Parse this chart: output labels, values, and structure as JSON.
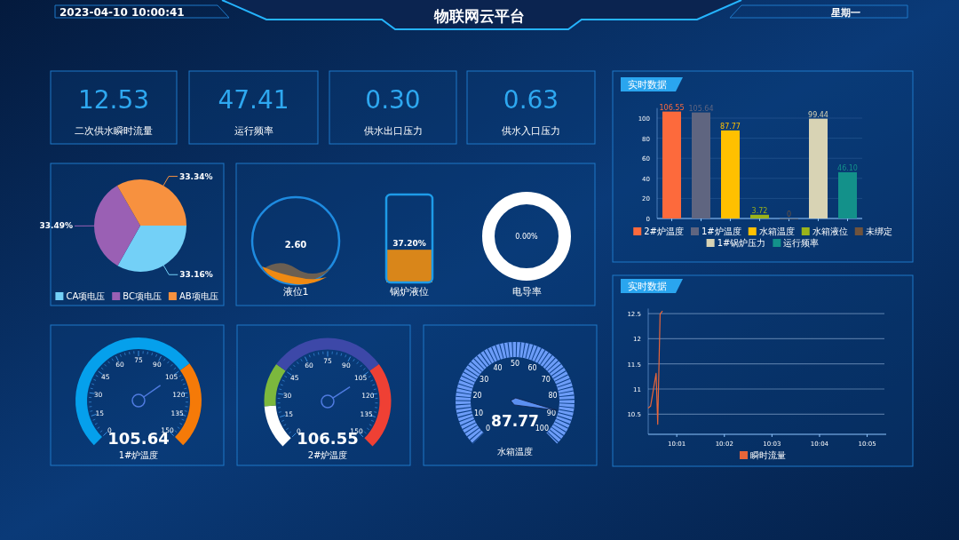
{
  "chart_data": [
    {
      "type": "other",
      "title": "物联网云平台",
      "annotations": [
        "2023-04-10 10:00:41",
        "星期一"
      ]
    },
    {
      "type": "other",
      "categories": [
        "二次供水瞬时流量",
        "运行频率",
        "供水出口压力",
        "供水入口压力"
      ],
      "annotations": [
        "12.53",
        "47.41",
        "0.30",
        "0.63"
      ]
    },
    {
      "type": "pie",
      "categories": [
        "CA项电压",
        "BC项电压",
        "AB项电压"
      ],
      "values": [
        33.16,
        33.49,
        33.34
      ],
      "colors": [
        "#73d0f7",
        "#9a60b4",
        "#f7913f"
      ],
      "value_labels": [
        "33.16%",
        "33.49%",
        "33.34%"
      ],
      "legend": "bottom"
    },
    {
      "type": "other",
      "title": "液位1",
      "annotations": [
        "2.60"
      ]
    },
    {
      "type": "other",
      "title": "锅炉液位",
      "values": [
        37.2
      ],
      "value_labels": [
        "37.20%"
      ]
    },
    {
      "type": "other",
      "title": "电导率",
      "values": [
        0
      ],
      "value_labels": [
        "0.00%"
      ]
    },
    {
      "type": "bar",
      "title": "实时数据",
      "categories": [
        null,
        null,
        null,
        null,
        null,
        null,
        null
      ],
      "ylim": [
        0,
        110
      ],
      "yticks": [
        0,
        20,
        40,
        60,
        80,
        100
      ],
      "grid": "y",
      "legend": "bottom",
      "series": [
        {
          "name": "2#炉温度",
          "color": "#fd6a3c",
          "values": [
            106.55,
            null,
            null,
            null,
            null,
            null,
            null
          ],
          "value_labels": [
            "106.55",
            null,
            null,
            null,
            null,
            null,
            null
          ]
        },
        {
          "name": "1#炉温度",
          "color": "#5f6580",
          "values": [
            null,
            105.64,
            null,
            null,
            null,
            null,
            null
          ],
          "value_labels": [
            null,
            "105.64",
            null,
            null,
            null,
            null,
            null
          ]
        },
        {
          "name": "水箱温度",
          "color": "#ffc000",
          "values": [
            null,
            null,
            87.77,
            null,
            null,
            null,
            null
          ],
          "value_labels": [
            null,
            null,
            "87.77",
            null,
            null,
            null,
            null
          ]
        },
        {
          "name": "水箱液位",
          "color": "#9bb31a",
          "values": [
            null,
            null,
            null,
            3.72,
            null,
            null,
            null
          ],
          "value_labels": [
            null,
            null,
            null,
            "3.72",
            null,
            null,
            null
          ]
        },
        {
          "name": "未绑定",
          "color": "#70533c",
          "values": [
            null,
            null,
            null,
            null,
            0,
            null,
            null
          ],
          "value_labels": [
            null,
            null,
            null,
            null,
            "0",
            null,
            null
          ]
        },
        {
          "name": "1#锅炉压力",
          "color": "#d8d3b4",
          "values": [
            null,
            null,
            null,
            null,
            null,
            99.44,
            null
          ],
          "value_labels": [
            null,
            null,
            null,
            null,
            null,
            "99.44",
            null
          ]
        },
        {
          "name": "运行频率",
          "color": "#13918a",
          "values": [
            null,
            null,
            null,
            null,
            null,
            null,
            46.1
          ],
          "value_labels": [
            null,
            null,
            null,
            null,
            null,
            null,
            "46.10"
          ]
        }
      ]
    },
    {
      "type": "line",
      "title": "实时数据",
      "x": [
        10.00667,
        10.0075,
        10.00944,
        10.01,
        10.01083,
        10.01167
      ],
      "xlim": [
        10.00667,
        10.09
      ],
      "xticks": [
        {
          "value": 10.016667,
          "label": "10:01"
        },
        {
          "value": 10.033333,
          "label": "10:02"
        },
        {
          "value": 10.05,
          "label": "10:03"
        },
        {
          "value": 10.066667,
          "label": "10:04"
        },
        {
          "value": 10.083333,
          "label": "10:05"
        }
      ],
      "ylim": [
        10.1,
        12.6
      ],
      "yticks": [
        10.5,
        11,
        11.5,
        12,
        12.5
      ],
      "grid": "y",
      "legend": "bottom",
      "series": [
        {
          "name": "瞬时流量",
          "color": "#e8653a",
          "values": [
            10.62,
            10.66,
            11.31,
            10.3,
            12.49,
            12.55
          ]
        }
      ]
    },
    {
      "type": "donut",
      "title": "1#炉温度",
      "categories": [
        null,
        null
      ],
      "values": [
        70,
        30
      ],
      "colors": [
        "#05a0ec",
        "#f57a08"
      ],
      "annotations": [
        "105.64",
        "0",
        "15",
        "30",
        "45",
        "60",
        "75",
        "90",
        "105",
        "120",
        "135",
        "150"
      ]
    },
    {
      "type": "donut",
      "title": "2#炉温度",
      "categories": [
        null,
        null,
        null,
        null
      ],
      "values": [
        15,
        15,
        40,
        30
      ],
      "colors": [
        "#ffffff",
        "#7cb83d",
        "#3d48a8",
        "#ef4034"
      ],
      "annotations": [
        "106.55",
        "0",
        "15",
        "30",
        "45",
        "60",
        "75",
        "90",
        "105",
        "120",
        "135",
        "150"
      ]
    },
    {
      "type": "pie",
      "title": "水箱温度",
      "categories": [
        null
      ],
      "values": [
        100
      ],
      "colors": [
        "#6c9cf7"
      ],
      "annotations": [
        "87.77",
        "0",
        "10",
        "20",
        "30",
        "40",
        "50",
        "60",
        "70",
        "80",
        "90",
        "100"
      ]
    }
  ]
}
